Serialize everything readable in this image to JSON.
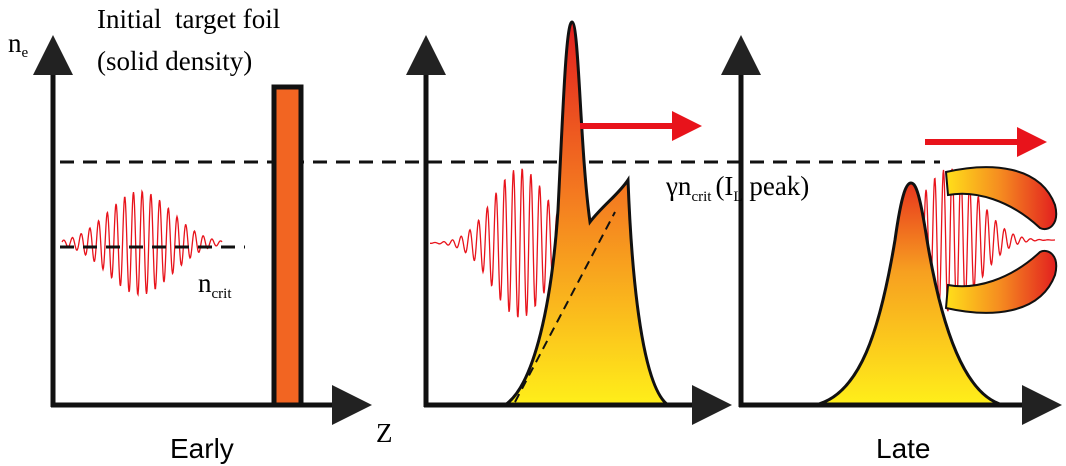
{
  "axis_labels": {
    "y": {
      "base": "n",
      "sub": "e"
    },
    "x": "Z"
  },
  "annotations": {
    "foil": [
      "Initial  target foil",
      "(solid density)"
    ],
    "critical": {
      "base": "n",
      "sub": "crit"
    },
    "relativistic": {
      "base": "γn",
      "sub": "crit",
      "open": "(I",
      "open_sub": "L",
      "close": " peak)"
    }
  },
  "captions": [
    "Early",
    "Late"
  ]
}
